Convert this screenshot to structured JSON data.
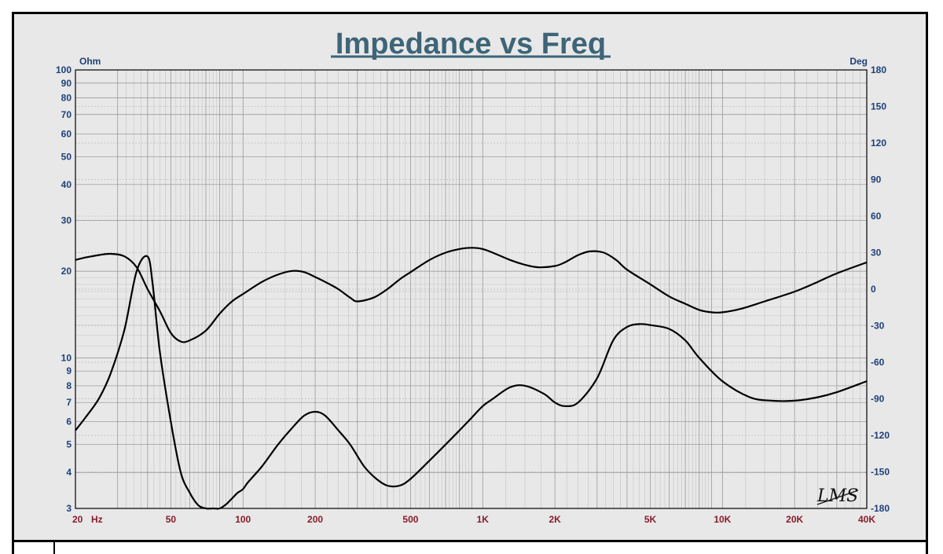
{
  "chart_data": {
    "type": "line",
    "title": "Impedance vs Freq",
    "xscale": "log",
    "xlim": [
      20,
      40000
    ],
    "x_ticks": [
      {
        "v": 20,
        "label": "20"
      },
      {
        "v": 50,
        "label": "50"
      },
      {
        "v": 100,
        "label": "100"
      },
      {
        "v": 200,
        "label": "200"
      },
      {
        "v": 500,
        "label": "500"
      },
      {
        "v": 1000,
        "label": "1K"
      },
      {
        "v": 2000,
        "label": "2K"
      },
      {
        "v": 5000,
        "label": "5K"
      },
      {
        "v": 10000,
        "label": "10K"
      },
      {
        "v": 20000,
        "label": "20K"
      },
      {
        "v": 40000,
        "label": "40K"
      }
    ],
    "x_unit": "Hz",
    "left_axis": {
      "unit": "Ohm",
      "scale": "log",
      "ylim": [
        3,
        100
      ],
      "ticks": [
        "3",
        "4",
        "5",
        "6",
        "7",
        "8",
        "9",
        "10",
        "20",
        "30",
        "40",
        "50",
        "60",
        "70",
        "80",
        "90",
        "100"
      ]
    },
    "right_axis": {
      "unit": "Deg",
      "scale": "linear",
      "ylim": [
        -180,
        180
      ],
      "ticks": [
        "180",
        "150",
        "120",
        "90",
        "60",
        "30",
        "0",
        "-30",
        "-60",
        "-90",
        "-120",
        "-150",
        "-180"
      ]
    },
    "grid": true,
    "logo": "LMS",
    "series": [
      {
        "axis": "left",
        "role": "impedance magnitude",
        "x": [
          20,
          22,
          25,
          28,
          32,
          36,
          40,
          42,
          45,
          50,
          55,
          60,
          65,
          70,
          75,
          80,
          85,
          90,
          95,
          100,
          105,
          120,
          140,
          160,
          180,
          200,
          220,
          250,
          280,
          320,
          360,
          400,
          450,
          500,
          600,
          700,
          800,
          900,
          1000,
          1100,
          1300,
          1500,
          1800,
          2000,
          2200,
          2500,
          3000,
          3500,
          4000,
          4500,
          5000,
          6000,
          7000,
          8000,
          10000,
          13000,
          16000,
          20000,
          25000,
          30000,
          40000
        ],
        "y": [
          5.6,
          6.2,
          7.2,
          8.8,
          12.5,
          20,
          22.5,
          18,
          10.5,
          6.0,
          4.0,
          3.4,
          3.08,
          3.0,
          3.0,
          3.0,
          3.1,
          3.25,
          3.4,
          3.5,
          3.7,
          4.2,
          5.0,
          5.7,
          6.3,
          6.5,
          6.3,
          5.6,
          5.0,
          4.2,
          3.8,
          3.6,
          3.6,
          3.8,
          4.4,
          5.0,
          5.6,
          6.2,
          6.8,
          7.2,
          7.9,
          8.0,
          7.5,
          7.0,
          6.8,
          7.0,
          8.5,
          11.5,
          12.8,
          13.1,
          13.0,
          12.6,
          11.5,
          10.0,
          8.3,
          7.3,
          7.1,
          7.1,
          7.3,
          7.6,
          8.3
        ]
      },
      {
        "axis": "right",
        "role": "phase",
        "x": [
          20,
          22,
          25,
          28,
          32,
          36,
          40,
          45,
          50,
          55,
          60,
          70,
          80,
          90,
          100,
          120,
          140,
          160,
          180,
          200,
          220,
          250,
          280,
          300,
          350,
          400,
          450,
          500,
          600,
          700,
          800,
          900,
          1000,
          1100,
          1300,
          1500,
          1700,
          2000,
          2200,
          2500,
          2800,
          3200,
          3600,
          4000,
          5000,
          6000,
          7000,
          8000,
          9000,
          10000,
          12000,
          15000,
          20000,
          25000,
          30000,
          40000
        ],
        "y": [
          24,
          26,
          28,
          29,
          27,
          18,
          0,
          -18,
          -36,
          -43,
          -42,
          -34,
          -20,
          -10,
          -4,
          6,
          12,
          15,
          14,
          10,
          6,
          0,
          -7,
          -10,
          -7,
          0,
          8,
          14,
          24,
          30,
          33,
          34,
          33,
          30,
          24,
          20,
          18,
          19,
          22,
          28,
          31,
          30,
          24,
          16,
          4,
          -6,
          -12,
          -17,
          -19,
          -19,
          -16,
          -10,
          -2,
          6,
          13,
          22
        ]
      }
    ]
  }
}
